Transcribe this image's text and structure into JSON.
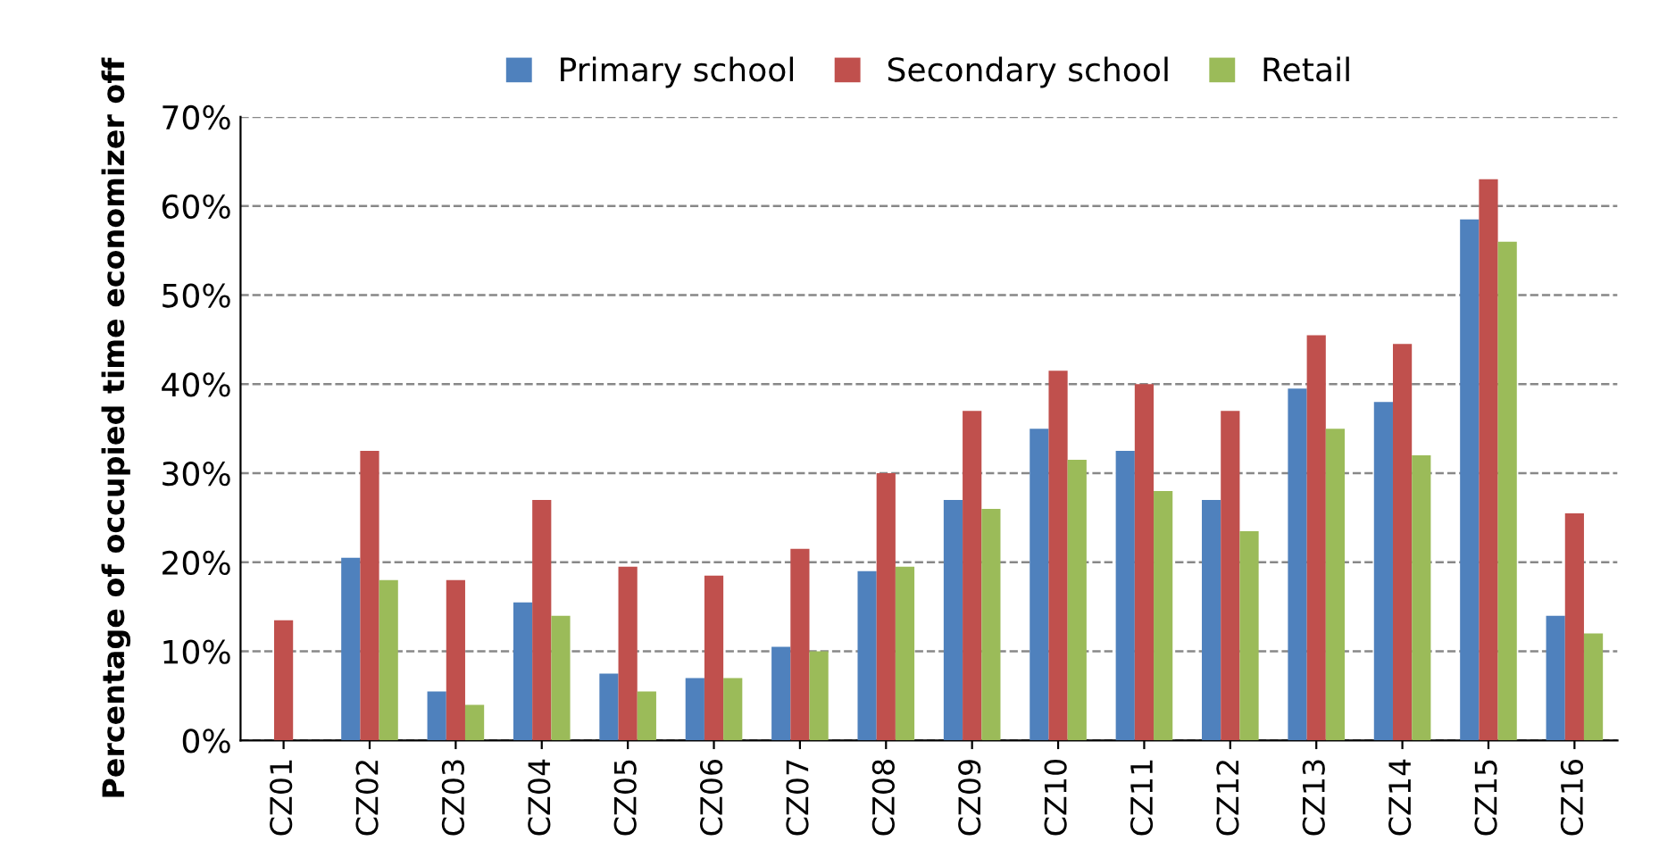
{
  "chart_data": {
    "type": "bar",
    "ylabel": "Percentage of occupied time economizer off",
    "categories": [
      "CZ01",
      "CZ02",
      "CZ03",
      "CZ04",
      "CZ05",
      "CZ06",
      "CZ07",
      "CZ08",
      "CZ09",
      "CZ10",
      "CZ11",
      "CZ12",
      "CZ13",
      "CZ14",
      "CZ15",
      "CZ16"
    ],
    "series": [
      {
        "name": "Primary school",
        "color": "#4f81bd",
        "values": [
          0,
          20.5,
          5.5,
          15.5,
          7.5,
          7,
          10.5,
          19,
          27,
          35,
          32.5,
          27,
          39.5,
          38,
          58.5,
          14
        ]
      },
      {
        "name": "Secondary school",
        "color": "#c0504d",
        "values": [
          13.5,
          32.5,
          18,
          27,
          19.5,
          18.5,
          21.5,
          30,
          37,
          41.5,
          40,
          37,
          45.5,
          44.5,
          63,
          25.5
        ]
      },
      {
        "name": "Retail",
        "color": "#9bbb59",
        "values": [
          0,
          18,
          4,
          14,
          5.5,
          7,
          10,
          19.5,
          26,
          31.5,
          28,
          23.5,
          35,
          32,
          56,
          12
        ]
      }
    ],
    "ylim": [
      0,
      70
    ],
    "yticks": [
      {
        "value": 0,
        "label": "0%"
      },
      {
        "value": 10,
        "label": "10%"
      },
      {
        "value": 20,
        "label": "20%"
      },
      {
        "value": 30,
        "label": "30%"
      },
      {
        "value": 40,
        "label": "40%"
      },
      {
        "value": 50,
        "label": "50%"
      },
      {
        "value": 60,
        "label": "60%"
      },
      {
        "value": 70,
        "label": "70%"
      }
    ],
    "grid": "y",
    "legend": "top"
  }
}
